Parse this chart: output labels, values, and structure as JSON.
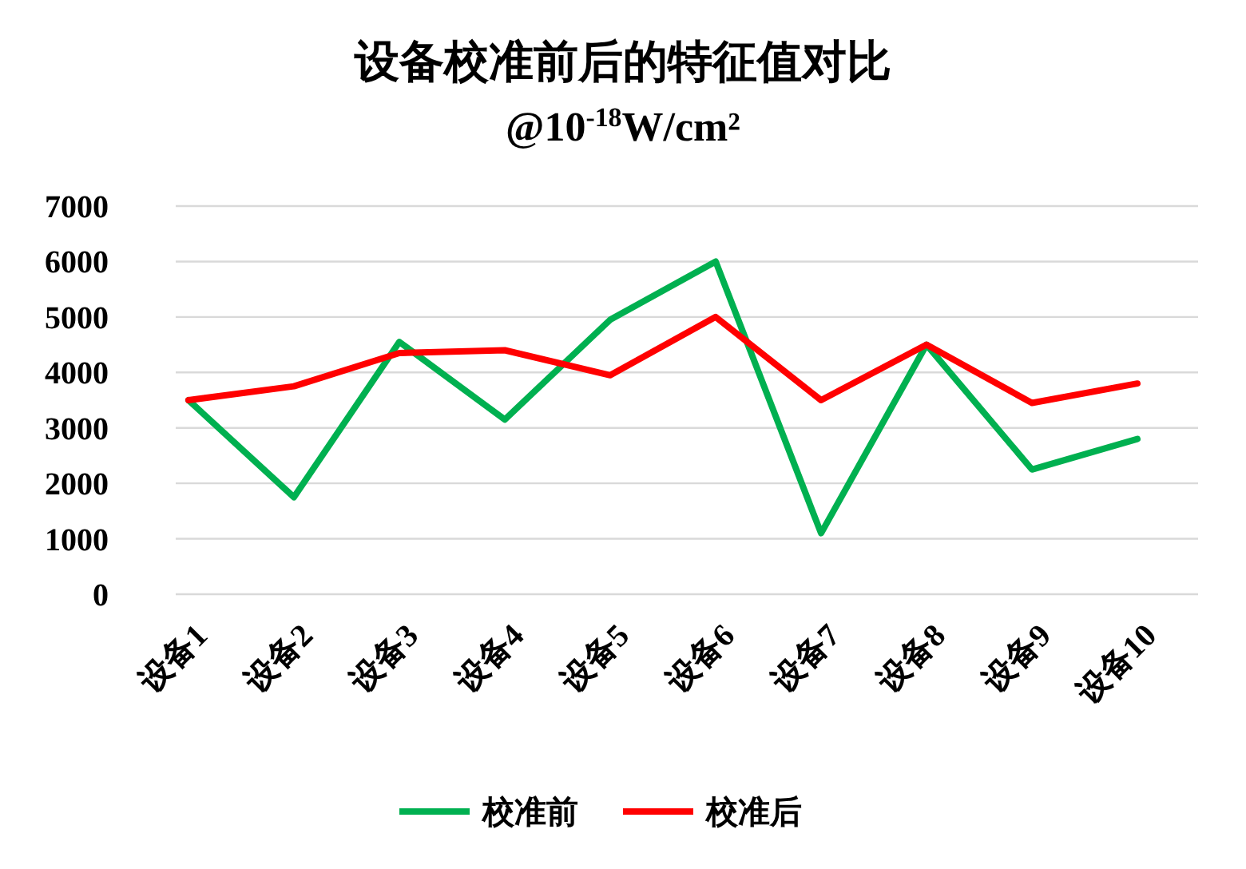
{
  "chart_data": {
    "type": "line",
    "title": "设备校准前后的特征值对比",
    "subtitle": "@10$^{-18}$W/cm²",
    "categories": [
      "设备1",
      "设备2",
      "设备3",
      "设备4",
      "设备5",
      "设备6",
      "设备7",
      "设备8",
      "设备9",
      "设备10"
    ],
    "series": [
      {
        "name": "校准前",
        "color": "#00b050",
        "values": [
          3500,
          1750,
          4550,
          3150,
          4950,
          6000,
          1100,
          4500,
          2250,
          2800
        ]
      },
      {
        "name": "校准后",
        "color": "#ff0000",
        "values": [
          3500,
          3750,
          4350,
          4400,
          3950,
          5000,
          3500,
          4500,
          3450,
          3800
        ]
      }
    ],
    "ylim": [
      0,
      7000
    ],
    "yticks": [
      0,
      1000,
      2000,
      3000,
      4000,
      5000,
      6000,
      7000
    ],
    "grid": "y",
    "legend": "bottom",
    "marker": "none",
    "line_style": "solid"
  }
}
